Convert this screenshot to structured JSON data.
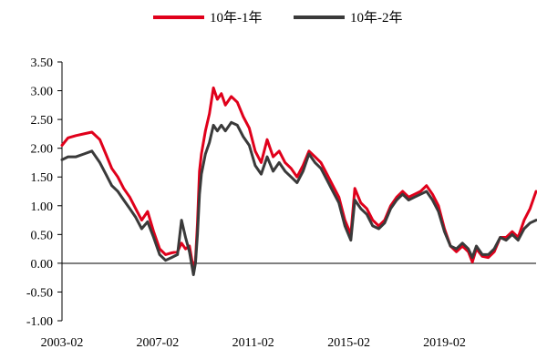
{
  "chart_data": {
    "type": "line",
    "title": "",
    "xlabel": "",
    "ylabel": "",
    "ylim": [
      -1.0,
      3.5
    ],
    "yticks": [
      "3.50",
      "3.00",
      "2.50",
      "2.00",
      "1.50",
      "1.00",
      "0.50",
      "0.00",
      "-0.50",
      "-1.00"
    ],
    "xlim": [
      "2003-02",
      "2022-12"
    ],
    "xticks": [
      "2003-02",
      "2007-02",
      "2011-02",
      "2015-02",
      "2019-02"
    ],
    "grid": false,
    "legend_position": "top-center",
    "series": [
      {
        "name": "10年-1年",
        "color": "#e0001b",
        "points": [
          [
            "2003-02",
            2.05
          ],
          [
            "2003-05",
            2.18
          ],
          [
            "2003-09",
            2.22
          ],
          [
            "2004-01",
            2.25
          ],
          [
            "2004-05",
            2.28
          ],
          [
            "2004-09",
            2.15
          ],
          [
            "2004-12",
            1.9
          ],
          [
            "2005-03",
            1.65
          ],
          [
            "2005-06",
            1.5
          ],
          [
            "2005-09",
            1.3
          ],
          [
            "2005-12",
            1.15
          ],
          [
            "2006-03",
            0.95
          ],
          [
            "2006-06",
            0.75
          ],
          [
            "2006-09",
            0.9
          ],
          [
            "2006-12",
            0.55
          ],
          [
            "2007-03",
            0.25
          ],
          [
            "2007-06",
            0.15
          ],
          [
            "2007-09",
            0.18
          ],
          [
            "2007-12",
            0.2
          ],
          [
            "2008-02",
            0.35
          ],
          [
            "2008-04",
            0.25
          ],
          [
            "2008-06",
            0.3
          ],
          [
            "2008-08",
            -0.1
          ],
          [
            "2008-09",
            0.05
          ],
          [
            "2008-10",
            0.7
          ],
          [
            "2008-11",
            1.6
          ],
          [
            "2008-12",
            1.9
          ],
          [
            "2009-02",
            2.3
          ],
          [
            "2009-04",
            2.6
          ],
          [
            "2009-06",
            3.05
          ],
          [
            "2009-08",
            2.85
          ],
          [
            "2009-10",
            2.95
          ],
          [
            "2009-12",
            2.75
          ],
          [
            "2010-03",
            2.9
          ],
          [
            "2010-06",
            2.8
          ],
          [
            "2010-09",
            2.55
          ],
          [
            "2010-12",
            2.35
          ],
          [
            "2011-03",
            1.95
          ],
          [
            "2011-06",
            1.75
          ],
          [
            "2011-09",
            2.15
          ],
          [
            "2011-12",
            1.85
          ],
          [
            "2012-03",
            1.95
          ],
          [
            "2012-06",
            1.75
          ],
          [
            "2012-09",
            1.65
          ],
          [
            "2012-12",
            1.5
          ],
          [
            "2013-03",
            1.7
          ],
          [
            "2013-06",
            1.95
          ],
          [
            "2013-09",
            1.85
          ],
          [
            "2013-12",
            1.75
          ],
          [
            "2014-03",
            1.55
          ],
          [
            "2014-06",
            1.35
          ],
          [
            "2014-09",
            1.15
          ],
          [
            "2014-12",
            0.75
          ],
          [
            "2015-03",
            0.5
          ],
          [
            "2015-05",
            1.3
          ],
          [
            "2015-08",
            1.05
          ],
          [
            "2015-11",
            0.95
          ],
          [
            "2016-02",
            0.75
          ],
          [
            "2016-05",
            0.65
          ],
          [
            "2016-08",
            0.75
          ],
          [
            "2016-11",
            1.0
          ],
          [
            "2017-02",
            1.15
          ],
          [
            "2017-05",
            1.25
          ],
          [
            "2017-08",
            1.15
          ],
          [
            "2017-11",
            1.2
          ],
          [
            "2018-02",
            1.25
          ],
          [
            "2018-05",
            1.35
          ],
          [
            "2018-08",
            1.2
          ],
          [
            "2018-11",
            1.0
          ],
          [
            "2019-02",
            0.6
          ],
          [
            "2019-05",
            0.3
          ],
          [
            "2019-08",
            0.2
          ],
          [
            "2019-11",
            0.3
          ],
          [
            "2020-02",
            0.2
          ],
          [
            "2020-04",
            0.02
          ],
          [
            "2020-06",
            0.25
          ],
          [
            "2020-09",
            0.12
          ],
          [
            "2020-12",
            0.1
          ],
          [
            "2021-03",
            0.2
          ],
          [
            "2021-06",
            0.45
          ],
          [
            "2021-09",
            0.45
          ],
          [
            "2021-12",
            0.55
          ],
          [
            "2022-03",
            0.45
          ],
          [
            "2022-06",
            0.75
          ],
          [
            "2022-09",
            0.95
          ],
          [
            "2022-12",
            1.25
          ]
        ]
      },
      {
        "name": "10年-2年",
        "color": "#3a3a3a",
        "points": [
          [
            "2003-02",
            1.8
          ],
          [
            "2003-05",
            1.85
          ],
          [
            "2003-09",
            1.85
          ],
          [
            "2004-01",
            1.9
          ],
          [
            "2004-05",
            1.95
          ],
          [
            "2004-09",
            1.75
          ],
          [
            "2004-12",
            1.55
          ],
          [
            "2005-03",
            1.35
          ],
          [
            "2005-06",
            1.25
          ],
          [
            "2005-09",
            1.1
          ],
          [
            "2005-12",
            0.95
          ],
          [
            "2006-03",
            0.8
          ],
          [
            "2006-06",
            0.6
          ],
          [
            "2006-09",
            0.72
          ],
          [
            "2006-12",
            0.45
          ],
          [
            "2007-03",
            0.15
          ],
          [
            "2007-06",
            0.05
          ],
          [
            "2007-09",
            0.1
          ],
          [
            "2007-12",
            0.15
          ],
          [
            "2008-02",
            0.75
          ],
          [
            "2008-04",
            0.45
          ],
          [
            "2008-06",
            0.2
          ],
          [
            "2008-08",
            -0.2
          ],
          [
            "2008-09",
            0.0
          ],
          [
            "2008-10",
            0.5
          ],
          [
            "2008-11",
            1.2
          ],
          [
            "2008-12",
            1.55
          ],
          [
            "2009-02",
            1.9
          ],
          [
            "2009-04",
            2.1
          ],
          [
            "2009-06",
            2.4
          ],
          [
            "2009-08",
            2.3
          ],
          [
            "2009-10",
            2.4
          ],
          [
            "2009-12",
            2.3
          ],
          [
            "2010-03",
            2.45
          ],
          [
            "2010-06",
            2.4
          ],
          [
            "2010-09",
            2.2
          ],
          [
            "2010-12",
            2.05
          ],
          [
            "2011-03",
            1.7
          ],
          [
            "2011-06",
            1.55
          ],
          [
            "2011-09",
            1.85
          ],
          [
            "2011-12",
            1.6
          ],
          [
            "2012-03",
            1.75
          ],
          [
            "2012-06",
            1.6
          ],
          [
            "2012-09",
            1.5
          ],
          [
            "2012-12",
            1.4
          ],
          [
            "2013-03",
            1.6
          ],
          [
            "2013-06",
            1.9
          ],
          [
            "2013-09",
            1.75
          ],
          [
            "2013-12",
            1.65
          ],
          [
            "2014-03",
            1.45
          ],
          [
            "2014-06",
            1.25
          ],
          [
            "2014-09",
            1.05
          ],
          [
            "2014-12",
            0.65
          ],
          [
            "2015-03",
            0.4
          ],
          [
            "2015-05",
            1.1
          ],
          [
            "2015-08",
            0.95
          ],
          [
            "2015-11",
            0.85
          ],
          [
            "2016-02",
            0.65
          ],
          [
            "2016-05",
            0.6
          ],
          [
            "2016-08",
            0.7
          ],
          [
            "2016-11",
            0.95
          ],
          [
            "2017-02",
            1.1
          ],
          [
            "2017-05",
            1.2
          ],
          [
            "2017-08",
            1.1
          ],
          [
            "2017-11",
            1.15
          ],
          [
            "2018-02",
            1.2
          ],
          [
            "2018-05",
            1.25
          ],
          [
            "2018-08",
            1.1
          ],
          [
            "2018-11",
            0.9
          ],
          [
            "2019-02",
            0.55
          ],
          [
            "2019-05",
            0.3
          ],
          [
            "2019-08",
            0.25
          ],
          [
            "2019-11",
            0.35
          ],
          [
            "2020-02",
            0.25
          ],
          [
            "2020-04",
            0.1
          ],
          [
            "2020-06",
            0.3
          ],
          [
            "2020-09",
            0.15
          ],
          [
            "2020-12",
            0.15
          ],
          [
            "2021-03",
            0.25
          ],
          [
            "2021-06",
            0.45
          ],
          [
            "2021-09",
            0.4
          ],
          [
            "2021-12",
            0.5
          ],
          [
            "2022-03",
            0.4
          ],
          [
            "2022-06",
            0.6
          ],
          [
            "2022-09",
            0.7
          ],
          [
            "2022-12",
            0.75
          ]
        ]
      }
    ]
  }
}
